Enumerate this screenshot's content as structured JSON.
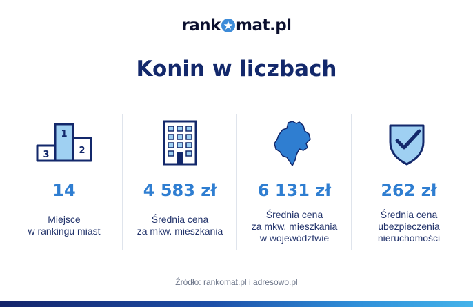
{
  "logo": {
    "prefix": "rank",
    "suffix": "mat.pl"
  },
  "title": "Konin w liczbach",
  "stats": [
    {
      "icon": "podium-icon",
      "value": "14",
      "label_lines": [
        "Miejsce",
        "w rankingu miast"
      ]
    },
    {
      "icon": "building-icon",
      "value": "4 583 zł",
      "label_lines": [
        "Średnia cena",
        "za mkw. mieszkania"
      ]
    },
    {
      "icon": "region-map-icon",
      "value": "6 131 zł",
      "label_lines": [
        "Średnia cena",
        "za mkw. mieszkania",
        "w województwie"
      ]
    },
    {
      "icon": "shield-check-icon",
      "value": "262 zł",
      "label_lines": [
        "Średnia cena",
        "ubezpieczenia",
        "nieruchomości"
      ]
    }
  ],
  "source": "Źródło: rankomat.pl i adresowo.pl",
  "colors": {
    "navy": "#13286b",
    "accent_blue": "#2f7ed1",
    "light_blue": "#9fd0f2"
  }
}
